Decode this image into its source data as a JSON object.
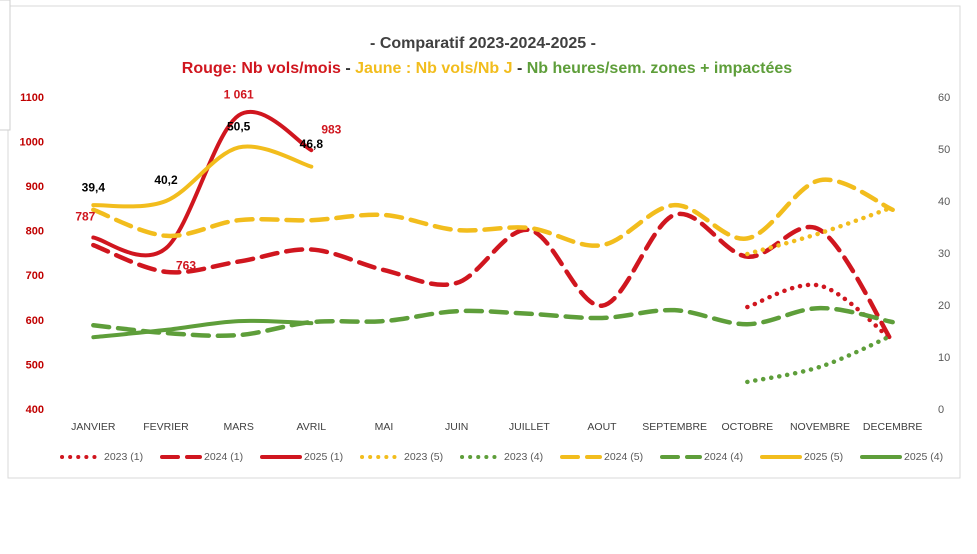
{
  "chart_data": {
    "type": "line",
    "title": "- Comparatif 2023-2024-2025 -",
    "subtitle_parts": [
      {
        "text": "Rouge: Nb vols/mois",
        "color": "#d0161f"
      },
      {
        "text": " - ",
        "color": "#333333"
      },
      {
        "text": "Jaune : Nb vols/Nb J",
        "color": "#f2bd1d"
      },
      {
        "text": " - ",
        "color": "#333333"
      },
      {
        "text": "Nb heures/sem. zones + impactées",
        "color": "#5e9e3a"
      }
    ],
    "categories": [
      "JANVIER",
      "FEVRIER",
      "MARS",
      "AVRIL",
      "MAI",
      "JUIN",
      "JUILLET",
      "AOUT",
      "SEPTEMBRE",
      "OCTOBRE",
      "NOVEMBRE",
      "DECEMBRE"
    ],
    "ylim": [
      400,
      1100
    ],
    "yticks": [
      400,
      500,
      600,
      700,
      800,
      900,
      1000,
      1100
    ],
    "y2lim": [
      0,
      60
    ],
    "y2ticks": [
      0,
      10,
      20,
      30,
      40,
      50,
      60
    ],
    "series": [
      {
        "name": "2023 (1)",
        "color": "#d0161f",
        "dash": "dot",
        "axis": "y",
        "values": [
          null,
          null,
          null,
          null,
          null,
          null,
          null,
          null,
          null,
          631,
          679,
          555
        ]
      },
      {
        "name": "2024 (1)",
        "color": "#d0161f",
        "dash": "dash",
        "axis": "y",
        "values": [
          770,
          710,
          733,
          760,
          714,
          685,
          804,
          634,
          838,
          744,
          804,
          551
        ]
      },
      {
        "name": "2025 (1)",
        "color": "#d0161f",
        "dash": "solid",
        "axis": "y",
        "values": [
          787,
          763,
          1061,
          983,
          null,
          null,
          null,
          null,
          null,
          null,
          null,
          null
        ],
        "value_labels": [
          "787",
          "763",
          "1 061",
          "983",
          null,
          null,
          null,
          null,
          null,
          null,
          null,
          null
        ]
      },
      {
        "name": "2023 (5)",
        "color": "#f2bd1d",
        "dash": "dot",
        "axis": "y2",
        "values": [
          null,
          null,
          null,
          null,
          null,
          null,
          null,
          null,
          null,
          30,
          34,
          39
        ]
      },
      {
        "name": "2023 (4)",
        "color": "#5e9e3a",
        "dash": "dot",
        "axis": "y2",
        "values": [
          null,
          null,
          null,
          null,
          null,
          null,
          null,
          null,
          null,
          5.4,
          8.3,
          14.4
        ]
      },
      {
        "name": "2024 (5)",
        "color": "#f2bd1d",
        "dash": "dash",
        "axis": "y2",
        "values": [
          38.5,
          33.5,
          36.5,
          36.5,
          37.5,
          34.6,
          35,
          31.7,
          39.4,
          33,
          44.2,
          38.5
        ]
      },
      {
        "name": "2024 (4)",
        "color": "#5e9e3a",
        "dash": "dash",
        "axis": "y2",
        "values": [
          16.3,
          14.8,
          14.4,
          16.9,
          17.1,
          19,
          18.5,
          17.7,
          19.2,
          16.5,
          19.6,
          16.9
        ]
      },
      {
        "name": "2025 (5)",
        "color": "#f2bd1d",
        "dash": "solid",
        "axis": "y2",
        "values": [
          39.4,
          40.2,
          50.5,
          46.8,
          null,
          null,
          null,
          null,
          null,
          null,
          null,
          null
        ],
        "value_labels": [
          "39,4",
          "40,2",
          "50,5",
          "46,8",
          null,
          null,
          null,
          null,
          null,
          null,
          null,
          null
        ]
      },
      {
        "name": "2025 (4)",
        "color": "#5e9e3a",
        "dash": "solid",
        "axis": "y2",
        "values": [
          14,
          15.4,
          17.1,
          16.7,
          null,
          null,
          null,
          null,
          null,
          null,
          null,
          null
        ]
      }
    ]
  }
}
